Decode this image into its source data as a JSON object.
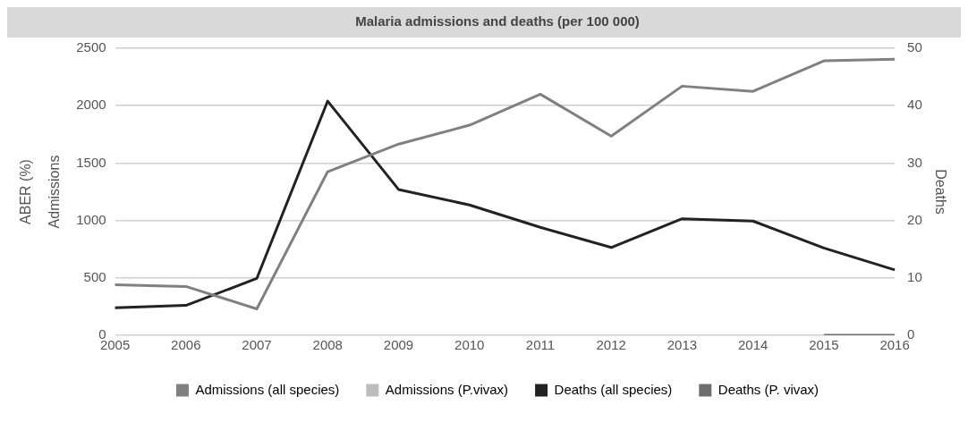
{
  "chart_data": {
    "type": "line",
    "title": "Malaria admissions and deaths (per 100 000)",
    "ylabel": "Admissions",
    "y2label": "Deaths",
    "annotations": [
      "ABER (%)"
    ],
    "categories": [
      "2005",
      "2006",
      "2007",
      "2008",
      "2009",
      "2010",
      "2011",
      "2012",
      "2013",
      "2014",
      "2015",
      "2016"
    ],
    "series": [
      {
        "name": "Admissions (all species)",
        "color": "#808080",
        "values": [
          440,
          425,
          230,
          1425,
          1665,
          1830,
          2100,
          1735,
          2170,
          2125,
          2390,
          2405
        ]
      },
      {
        "name": "Admissions (P.vivax)",
        "color": "#bdbdbd",
        "values": [
          null,
          null,
          null,
          null,
          null,
          null,
          null,
          null,
          null,
          null,
          null,
          null
        ]
      },
      {
        "name": "Deaths (all species)",
        "color": "#222222",
        "axis": "y2",
        "values": [
          4.8,
          5.2,
          9.9,
          40.8,
          25.4,
          22.7,
          18.8,
          15.3,
          20.3,
          19.9,
          15.2,
          11.4
        ]
      },
      {
        "name": "Deaths (P. vivax)",
        "color": "#6e6e6e",
        "axis": "y2",
        "values": [
          null,
          null,
          null,
          null,
          null,
          null,
          null,
          null,
          null,
          null,
          0,
          0
        ]
      }
    ],
    "ylim": [
      0,
      2500
    ],
    "yticks": [
      0,
      500,
      1000,
      1500,
      2000,
      2500
    ],
    "y2lim": [
      0,
      50
    ],
    "y2ticks": [
      0,
      10,
      20,
      30,
      40,
      50
    ],
    "grid": "y",
    "legend": "bottom",
    "marker": "none",
    "line_style": "solid"
  }
}
